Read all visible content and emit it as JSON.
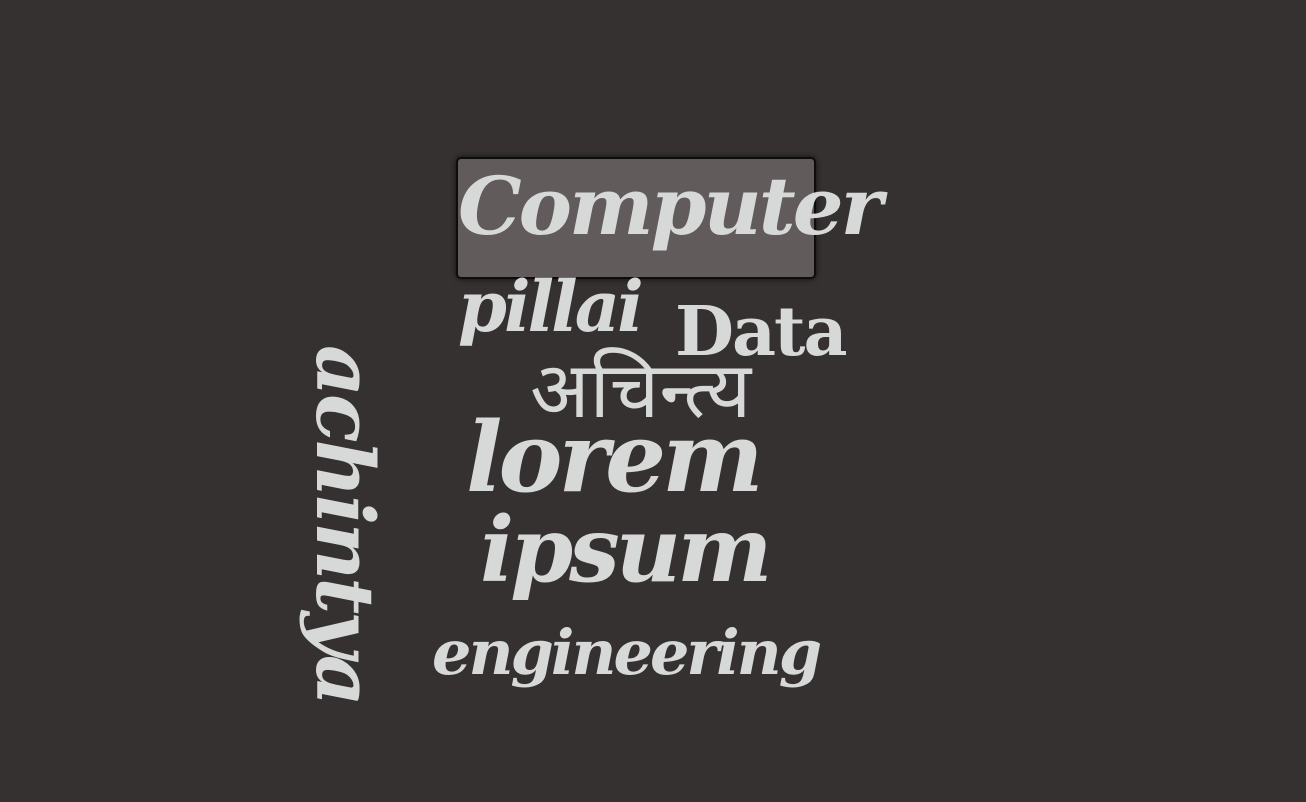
{
  "background_color": "#353131",
  "word_color": "#d7d8d8",
  "words": {
    "computer": "Computer",
    "pillai": "pillai",
    "data": "Data",
    "achintya_devanagari": "अचिन्त्य",
    "lorem": "lorem",
    "ipsum": "ipsum",
    "engineering": "engineering",
    "achintya": "achintya"
  },
  "highlighted_word": "Computer"
}
